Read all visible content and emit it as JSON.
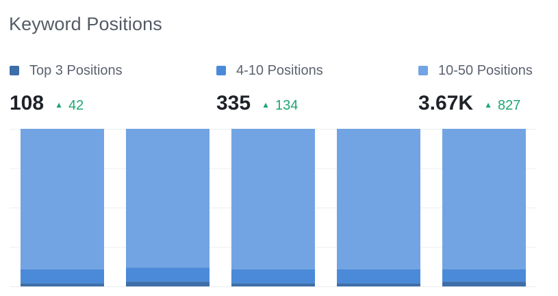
{
  "widget": {
    "title": "Keyword Positions"
  },
  "metrics": [
    {
      "label": "Top 3 Positions",
      "value": "108",
      "delta": "42",
      "color": "#3d6ea8"
    },
    {
      "label": "4-10 Positions",
      "value": "335",
      "delta": "134",
      "color": "#4b8ad8"
    },
    {
      "label": "10-50 Positions",
      "value": "3.67K",
      "delta": "827",
      "color": "#72a4e3"
    }
  ],
  "delta_icon": "triangle-up-icon",
  "colors": {
    "positive": "#1ea672",
    "grid": "#ebedf0"
  },
  "chart_data": {
    "type": "bar",
    "stacked": true,
    "normalized": true,
    "categories": [
      "",
      "",
      "",
      "",
      ""
    ],
    "series": [
      {
        "name": "Top 3 Positions",
        "values": [
          0.02,
          0.03,
          0.02,
          0.02,
          0.03
        ]
      },
      {
        "name": "4-10 Positions",
        "values": [
          0.09,
          0.09,
          0.09,
          0.09,
          0.08
        ]
      },
      {
        "name": "10-50 Positions",
        "values": [
          0.89,
          0.88,
          0.89,
          0.89,
          0.89
        ]
      }
    ],
    "ylim": [
      0,
      1
    ],
    "grid": true,
    "legend": "top"
  }
}
